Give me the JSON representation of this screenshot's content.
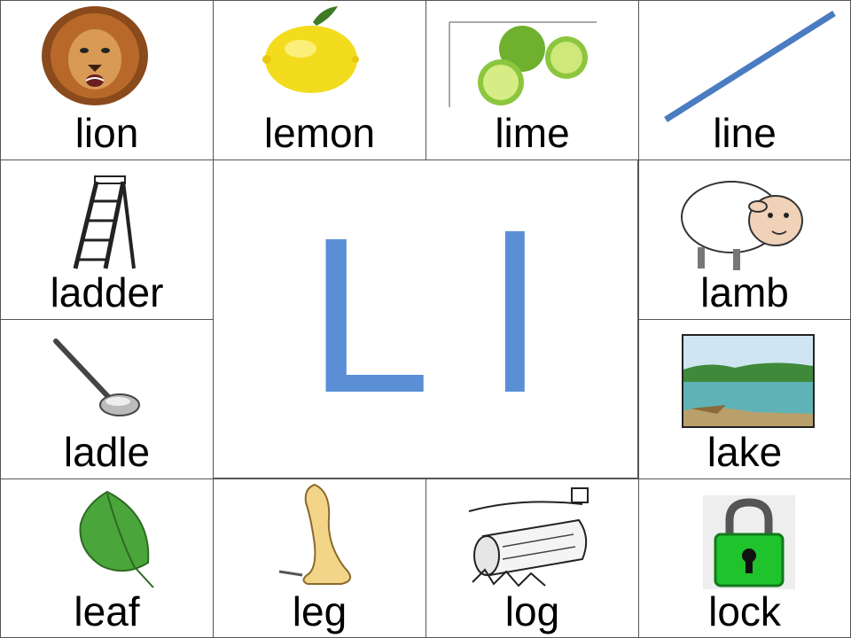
{
  "accent_color": "#5a8fd6",
  "center": {
    "upper": "L",
    "lower": "l"
  },
  "cards": {
    "lion": "lion",
    "lemon": "lemon",
    "lime": "lime",
    "line": "line",
    "ladder": "ladder",
    "lamb": "lamb",
    "ladle": "ladle",
    "lake": "lake",
    "leaf": "leaf",
    "leg": "leg",
    "log": "log",
    "lock": "lock"
  },
  "icons": {
    "lion": "lion-icon",
    "lemon": "lemon-icon",
    "lime": "lime-icon",
    "line": "line-icon",
    "ladder": "ladder-icon",
    "lamb": "lamb-icon",
    "ladle": "ladle-icon",
    "lake": "lake-icon",
    "leaf": "leaf-icon",
    "leg": "leg-icon",
    "log": "log-icon",
    "lock": "lock-icon"
  }
}
